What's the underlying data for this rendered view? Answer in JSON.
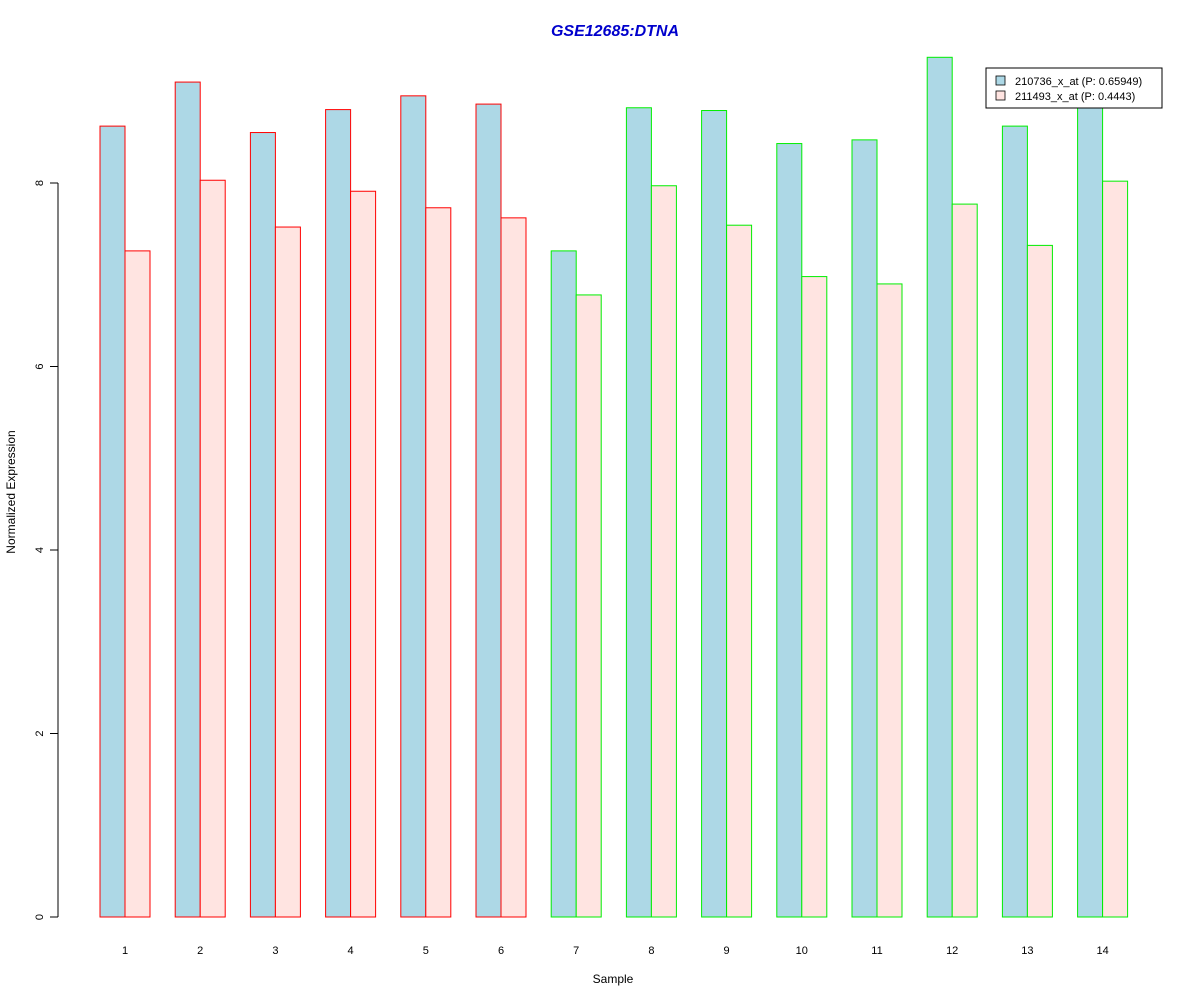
{
  "chart_data": {
    "type": "bar",
    "title": "GSE12685:DTNA",
    "xlabel": "Sample",
    "ylabel": "Normalized Expression",
    "categories": [
      "1",
      "2",
      "3",
      "4",
      "5",
      "6",
      "7",
      "8",
      "9",
      "10",
      "11",
      "12",
      "13",
      "14"
    ],
    "ylim": [
      0,
      9.6
    ],
    "yticks": [
      0,
      2,
      4,
      6,
      8
    ],
    "grid": false,
    "legend_position": "top-right",
    "series": [
      {
        "name": "210736_x_at (P: 0.65949)",
        "fill": "#add8e6",
        "values": [
          8.62,
          9.1,
          8.55,
          8.8,
          8.95,
          8.86,
          7.26,
          8.82,
          8.79,
          8.43,
          8.47,
          9.37,
          8.62,
          8.85
        ]
      },
      {
        "name": "211493_x_at (P: 0.4443)",
        "fill": "#ffe4e1",
        "values": [
          7.26,
          8.03,
          7.52,
          7.91,
          7.73,
          7.62,
          6.78,
          7.97,
          7.54,
          6.98,
          6.9,
          7.77,
          7.32,
          8.02
        ]
      }
    ],
    "group_border_colors": [
      "#ff0000",
      "#ff0000",
      "#ff0000",
      "#ff0000",
      "#ff0000",
      "#ff0000",
      "#00ee00",
      "#00ee00",
      "#00ee00",
      "#00ee00",
      "#00ee00",
      "#00ee00",
      "#00ee00",
      "#00ee00"
    ],
    "title_color": "#0000cc"
  }
}
